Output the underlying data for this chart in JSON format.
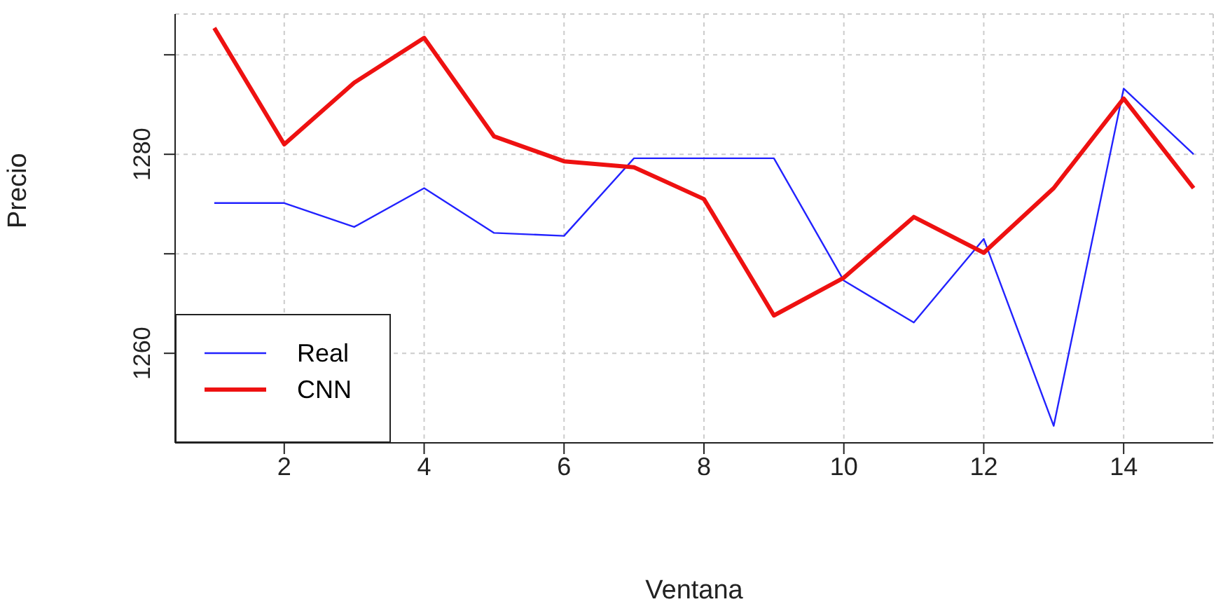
{
  "chart_data": {
    "type": "line",
    "xlabel": "Ventana",
    "ylabel": "Precio",
    "x": [
      1,
      2,
      3,
      4,
      5,
      6,
      7,
      8,
      9,
      10,
      11,
      12,
      13,
      14,
      15
    ],
    "series": [
      {
        "name": "Real",
        "color": "#2222ff",
        "values": [
          1275.1,
          1275.1,
          1272.7,
          1276.6,
          1272.1,
          1271.8,
          1279.6,
          1279.6,
          1279.6,
          1267.3,
          1263.1,
          1271.5,
          1252.7,
          1286.6,
          1280.0
        ]
      },
      {
        "name": "CNN",
        "color": "#ee1111",
        "values": [
          1292.7,
          1281.0,
          1287.2,
          1291.7,
          1281.8,
          1279.3,
          1278.7,
          1275.5,
          1263.8,
          1267.6,
          1273.7,
          1270.1,
          1276.6,
          1285.6,
          1276.6
        ]
      }
    ],
    "xlim": [
      0.44,
      15.28
    ],
    "xticks": [
      2,
      4,
      6,
      8,
      10,
      12,
      14
    ],
    "ylim": [
      1251,
      1294.1
    ],
    "yticks": [
      1260,
      {
        "value": 1270,
        "label": null
      },
      1280,
      {
        "value": 1290,
        "label": null
      }
    ],
    "grid": true,
    "legend": "bottom left",
    "marker": "none",
    "line_style": "solid"
  }
}
